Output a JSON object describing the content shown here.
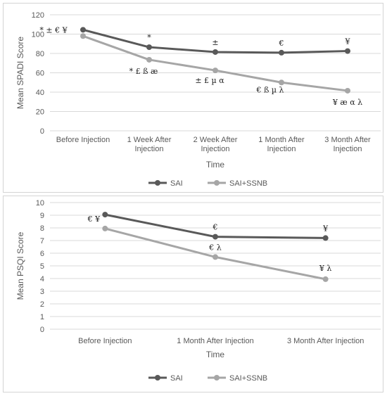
{
  "chart_data": [
    {
      "type": "line",
      "xlabel": "Time",
      "ylabel": "Mean SPADI Score",
      "ylim": [
        0,
        120
      ],
      "yticks": [
        0,
        20,
        40,
        60,
        80,
        100,
        120
      ],
      "categories": [
        "Before Injection",
        "1 Week After Injection",
        "2 Week After Injection",
        "1 Month After Injection",
        "3 Month After Injection"
      ],
      "grid": true,
      "legend": "bottom",
      "series": [
        {
          "name": "SAI",
          "color": "#595959",
          "values": [
            104.5,
            86.5,
            81.5,
            80.8,
            82.5
          ],
          "annotations": [
            "* ± € ¥",
            "*",
            "±",
            "€",
            "¥"
          ]
        },
        {
          "name": "SAI+SSNB",
          "color": "#a6a6a6",
          "values": [
            98,
            73.5,
            62.5,
            50,
            41.5
          ],
          "annotations": [
            "",
            "* £ ß æ",
            "± £ µ α",
            "€ ß µ λ",
            "¥ æ α λ"
          ]
        }
      ]
    },
    {
      "type": "line",
      "xlabel": "Time",
      "ylabel": "Mean PSQI Score",
      "ylim": [
        0,
        10
      ],
      "yticks": [
        0,
        1,
        2,
        3,
        4,
        5,
        6,
        7,
        8,
        9,
        10
      ],
      "categories": [
        "Before Injection",
        "1 Month After Injection",
        "3 Month After Injection"
      ],
      "grid": true,
      "legend": "bottom",
      "series": [
        {
          "name": "SAI",
          "color": "#595959",
          "values": [
            9.05,
            7.3,
            7.2
          ],
          "annotations": [
            "€ ¥",
            "€",
            "¥"
          ]
        },
        {
          "name": "SAI+SSNB",
          "color": "#a6a6a6",
          "values": [
            7.95,
            5.7,
            3.95
          ],
          "annotations": [
            "",
            "€ λ",
            "¥ λ"
          ]
        }
      ]
    }
  ]
}
